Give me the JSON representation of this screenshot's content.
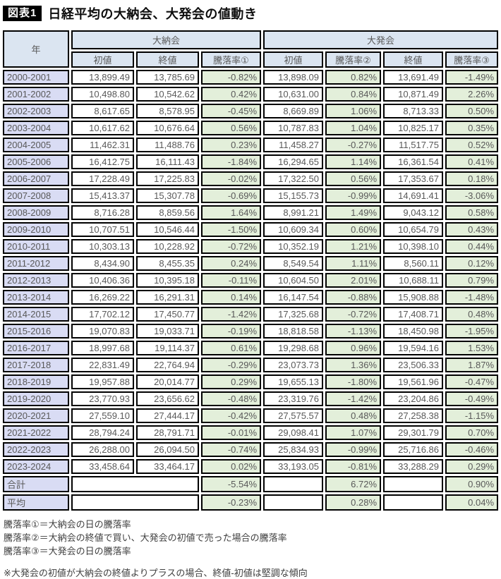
{
  "title": {
    "badge": "図表1",
    "text": "日経平均の大納会、大発会の値動き"
  },
  "chart_data": {
    "type": "table",
    "title": "日経平均の大納会、大発会の値動き",
    "header": {
      "year": "年",
      "groups": [
        {
          "label": "大納会",
          "span": 3
        },
        {
          "label": "大発会",
          "span": 4
        }
      ],
      "sub": [
        "初値",
        "終値",
        "騰落率①",
        "初値",
        "騰落率②",
        "終値",
        "騰落率③"
      ]
    },
    "rows": [
      [
        "2000-2001",
        "13,899.49",
        "13,785.69",
        "-0.82%",
        "13,898.09",
        "0.82%",
        "13,691.49",
        "-1.49%"
      ],
      [
        "2001-2002",
        "10,498.80",
        "10,542.62",
        "0.42%",
        "10,631.00",
        "0.84%",
        "10,871.49",
        "2.26%"
      ],
      [
        "2002-2003",
        "8,617.65",
        "8,578.95",
        "-0.45%",
        "8,669.89",
        "1.06%",
        "8,713.33",
        "0.50%"
      ],
      [
        "2003-2004",
        "10,617.62",
        "10,676.64",
        "0.56%",
        "10,787.83",
        "1.04%",
        "10,825.17",
        "0.35%"
      ],
      [
        "2004-2005",
        "11,462.31",
        "11,488.76",
        "0.23%",
        "11,458.27",
        "-0.27%",
        "11,517.75",
        "0.52%"
      ],
      [
        "2005-2006",
        "16,412.75",
        "16,111.43",
        "-1.84%",
        "16,294.65",
        "1.14%",
        "16,361.54",
        "0.41%"
      ],
      [
        "2006-2007",
        "17,228.49",
        "17,225.83",
        "-0.02%",
        "17,322.50",
        "0.56%",
        "17,353.67",
        "0.18%"
      ],
      [
        "2007-2008",
        "15,413.37",
        "15,307.78",
        "-0.69%",
        "15,155.73",
        "-0.99%",
        "14,691.41",
        "-3.06%"
      ],
      [
        "2008-2009",
        "8,716.28",
        "8,859.56",
        "1.64%",
        "8,991.21",
        "1.49%",
        "9,043.12",
        "0.58%"
      ],
      [
        "2009-2010",
        "10,707.51",
        "10,546.44",
        "-1.50%",
        "10,609.34",
        "0.60%",
        "10,654.79",
        "0.43%"
      ],
      [
        "2010-2011",
        "10,303.13",
        "10,228.92",
        "-0.72%",
        "10,352.19",
        "1.21%",
        "10,398.10",
        "0.44%"
      ],
      [
        "2011-2012",
        "8,434.90",
        "8,455.35",
        "0.24%",
        "8,549.54",
        "1.11%",
        "8,560.11",
        "0.12%"
      ],
      [
        "2012-2013",
        "10,406.36",
        "10,395.18",
        "-0.11%",
        "10,604.50",
        "2.01%",
        "10,688.11",
        "0.79%"
      ],
      [
        "2013-2014",
        "16,269.22",
        "16,291.31",
        "0.14%",
        "16,147.54",
        "-0.88%",
        "15,908.88",
        "-1.48%"
      ],
      [
        "2014-2015",
        "17,702.12",
        "17,450.77",
        "-1.42%",
        "17,325.68",
        "-0.72%",
        "17,408.71",
        "0.48%"
      ],
      [
        "2015-2016",
        "19,070.83",
        "19,033.71",
        "-0.19%",
        "18,818.58",
        "-1.13%",
        "18,450.98",
        "-1.95%"
      ],
      [
        "2016-2017",
        "18,997.68",
        "19,114.37",
        "0.61%",
        "19,298.68",
        "0.96%",
        "19,594.16",
        "1.53%"
      ],
      [
        "2017-2018",
        "22,831.49",
        "22,764.94",
        "-0.29%",
        "23,073.73",
        "1.36%",
        "23,506.33",
        "1.87%"
      ],
      [
        "2018-2019",
        "19,957.88",
        "20,014.77",
        "0.29%",
        "19,655.13",
        "-1.80%",
        "19,561.96",
        "-0.47%"
      ],
      [
        "2019-2020",
        "23,770.93",
        "23,656.62",
        "-0.48%",
        "23,319.76",
        "-1.42%",
        "23,204.86",
        "-0.49%"
      ],
      [
        "2020-2021",
        "27,559.10",
        "27,444.17",
        "-0.42%",
        "27,575.57",
        "0.48%",
        "27,258.38",
        "-1.15%"
      ],
      [
        "2021-2022",
        "28,794.24",
        "28,791.71",
        "-0.01%",
        "29,098.41",
        "1.07%",
        "29,301.79",
        "0.70%"
      ],
      [
        "2022-2023",
        "26,288.00",
        "26,094.50",
        "-0.74%",
        "25,834.93",
        "-0.99%",
        "25,716.86",
        "-0.46%"
      ],
      [
        "2023-2024",
        "33,458.64",
        "33,464.17",
        "0.02%",
        "33,193.05",
        "-0.81%",
        "33,288.29",
        "0.29%"
      ]
    ],
    "summary_rows": [
      {
        "label": "合計",
        "rates": [
          "-5.54%",
          "6.72%",
          "0.90%"
        ]
      },
      {
        "label": "平均",
        "rates": [
          "-0.23%",
          "0.28%",
          "0.04%"
        ]
      }
    ]
  },
  "notes": [
    "騰落率①＝大納会の日の騰落率",
    "騰落率②＝大納会の終値で買い、大発会の初値で売った場合の騰落率",
    "騰落率③＝大発会の日の騰落率"
  ],
  "footnote": "※大発会の初値が大納会の終値よりプラスの場合、終値-初値は堅調な傾向",
  "colors": {
    "header_blue": "#dbe5f1",
    "year_lavender": "#d9dcf4",
    "rate_green": "#e3efda",
    "border": "#000000",
    "badge_bg": "#000000",
    "badge_text": "#ffffff"
  }
}
